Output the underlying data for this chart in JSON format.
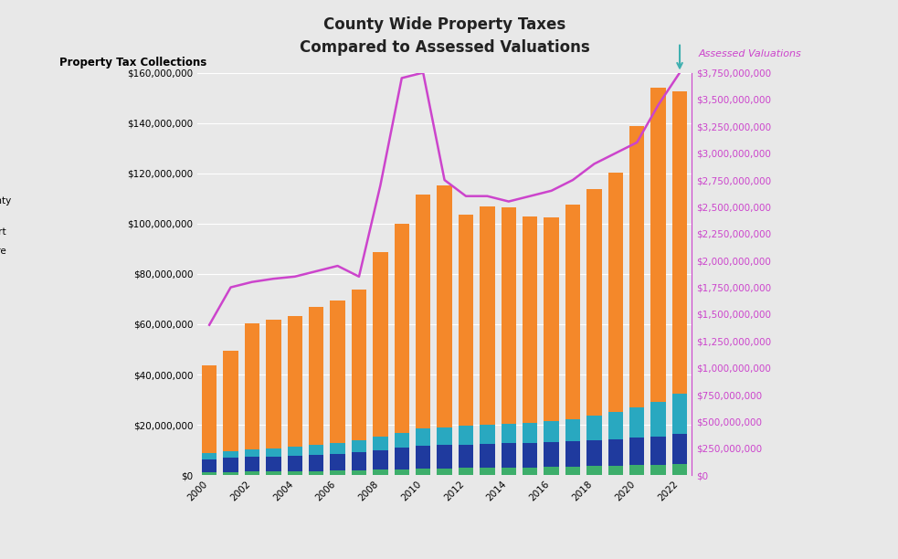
{
  "title_line1": "County Wide Property Taxes",
  "title_line2": "Compared to Assessed Valuations",
  "ylabel_left": "Property Tax Collections",
  "ylabel_right": "Assessed Valuations",
  "years": [
    2000,
    2001,
    2002,
    2003,
    2004,
    2005,
    2006,
    2007,
    2008,
    2009,
    2010,
    2011,
    2012,
    2013,
    2014,
    2015,
    2016,
    2017,
    2018,
    2019,
    2020,
    2021,
    2022
  ],
  "xtick_labels": [
    "2000",
    "",
    "2002",
    "",
    "2004",
    "",
    "2006",
    "",
    "2008",
    "",
    "2010",
    "",
    "2012",
    "",
    "2014",
    "",
    "2016",
    "",
    "2018",
    "",
    "2020",
    "",
    "2022"
  ],
  "county_core": [
    1200000,
    1300000,
    1400000,
    1500000,
    1600000,
    1700000,
    1800000,
    2000000,
    2200000,
    2400000,
    2600000,
    2700000,
    2800000,
    2900000,
    3000000,
    3100000,
    3200000,
    3400000,
    3600000,
    3800000,
    4000000,
    4200000,
    4500000
  ],
  "ost_support": [
    5000000,
    5500000,
    5800000,
    6000000,
    6200000,
    6500000,
    6800000,
    7200000,
    7800000,
    8500000,
    9000000,
    9200000,
    9400000,
    9500000,
    9600000,
    9700000,
    9800000,
    10000000,
    10200000,
    10500000,
    10800000,
    11000000,
    12000000
  ],
  "other_county": [
    2500000,
    2800000,
    3000000,
    3200000,
    3400000,
    3700000,
    4000000,
    4500000,
    5500000,
    6000000,
    7000000,
    7200000,
    7400000,
    7600000,
    7800000,
    8000000,
    8500000,
    9000000,
    10000000,
    11000000,
    12000000,
    14000000,
    16000000
  ],
  "other_districts": [
    35000000,
    40000000,
    50000000,
    51000000,
    52000000,
    55000000,
    57000000,
    60000000,
    73000000,
    83000000,
    93000000,
    96000000,
    84000000,
    87000000,
    86000000,
    82000000,
    81000000,
    85000000,
    90000000,
    95000000,
    112000000,
    125000000,
    120000000
  ],
  "assessed_valuation": [
    1400000000,
    1750000000,
    1800000000,
    1830000000,
    1850000000,
    1900000000,
    1950000000,
    1850000000,
    2700000000,
    3700000000,
    3750000000,
    2750000000,
    2600000000,
    2600000000,
    2550000000,
    2600000000,
    2650000000,
    2750000000,
    2900000000,
    3000000000,
    3100000000,
    3450000000,
    3750000000
  ],
  "bar_colors": {
    "county_core": "#3dae6b",
    "ost_support": "#1f3a9e",
    "other_county": "#29a8c0",
    "other_districts": "#f4882a"
  },
  "line_color": "#cc44cc",
  "arrow_color": "#40b0b0",
  "ylim_left": [
    0,
    160000000
  ],
  "ylim_right": [
    0,
    3750000000
  ],
  "background_color": "#e8e8e8",
  "plot_bg": "#e8e8e8",
  "title_fontsize": 12,
  "tick_fontsize": 7.5,
  "label_fontsize": 8.5
}
